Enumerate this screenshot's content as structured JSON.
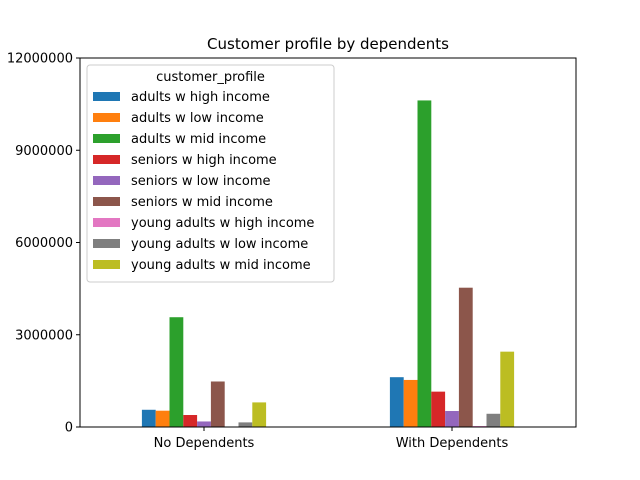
{
  "chart_data": {
    "type": "bar",
    "title": "Customer profile by dependents",
    "xlabel": "",
    "ylabel": "",
    "categories": [
      "No Dependents",
      "With Dependents"
    ],
    "ylim": [
      0,
      12000000
    ],
    "yticks": [
      0,
      3000000,
      6000000,
      9000000,
      12000000
    ],
    "ytick_labels": [
      "0",
      "3000000",
      "6000000",
      "9000000",
      "12000000"
    ],
    "grid": false,
    "legend": {
      "title": "customer_profile",
      "placement": "top-left"
    },
    "series": [
      {
        "name": "adults w high income",
        "color": "#1f77b4",
        "values": [
          560000,
          1620000
        ]
      },
      {
        "name": "adults w low income",
        "color": "#ff7f0e",
        "values": [
          530000,
          1530000
        ]
      },
      {
        "name": "adults w mid income",
        "color": "#2ca02c",
        "values": [
          3570000,
          10620000
        ]
      },
      {
        "name": "seniors w high income",
        "color": "#d62728",
        "values": [
          390000,
          1150000
        ]
      },
      {
        "name": "seniors w low income",
        "color": "#9467bd",
        "values": [
          180000,
          520000
        ]
      },
      {
        "name": "seniors w mid income",
        "color": "#8c564b",
        "values": [
          1480000,
          4530000
        ]
      },
      {
        "name": "young adults w high income",
        "color": "#e377c2",
        "values": [
          10000,
          30000
        ]
      },
      {
        "name": "young adults w low income",
        "color": "#7f7f7f",
        "values": [
          150000,
          430000
        ]
      },
      {
        "name": "young adults w mid income",
        "color": "#bcbd22",
        "values": [
          800000,
          2450000
        ]
      }
    ]
  }
}
